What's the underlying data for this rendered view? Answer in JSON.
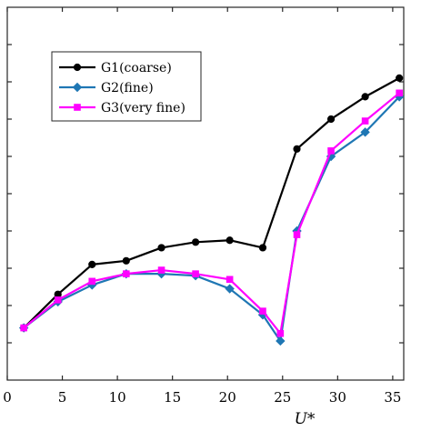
{
  "chart_data": {
    "type": "line",
    "title": "",
    "xlabel": "U*",
    "ylabel": "",
    "xlim": [
      0,
      36
    ],
    "ylim": [
      0,
      10
    ],
    "xticks": [
      0,
      5,
      10,
      15,
      20,
      25,
      30,
      35
    ],
    "xtick_labels": [
      "0",
      "5",
      "10",
      "15",
      "20",
      "25",
      "30",
      "35"
    ],
    "yticks": [
      1,
      2,
      3,
      4,
      5,
      6,
      7,
      8,
      9
    ],
    "grid": false,
    "legend_position": "top-left",
    "series": [
      {
        "name": "G1(coarse)",
        "color": "#000000",
        "marker": "circle",
        "x": [
          1.5,
          4.6,
          7.7,
          10.8,
          14.0,
          17.1,
          20.2,
          23.2,
          26.3,
          29.4,
          32.5,
          35.6
        ],
        "y": [
          1.4,
          2.3,
          3.1,
          3.2,
          3.55,
          3.7,
          3.75,
          3.55,
          6.2,
          7.0,
          7.6,
          8.1
        ]
      },
      {
        "name": "G2(fine)",
        "color": "#1f77b4",
        "marker": "diamond",
        "x": [
          1.5,
          4.6,
          7.7,
          10.8,
          14.0,
          17.1,
          20.2,
          23.2,
          24.8,
          26.3,
          29.4,
          32.5,
          35.6
        ],
        "y": [
          1.4,
          2.1,
          2.55,
          2.85,
          2.85,
          2.8,
          2.45,
          1.75,
          1.05,
          4.0,
          6.0,
          6.65,
          7.6
        ]
      },
      {
        "name": "G3(very fine)",
        "color": "#ff00ff",
        "marker": "square",
        "x": [
          1.5,
          4.6,
          7.7,
          10.8,
          14.0,
          17.1,
          20.2,
          23.2,
          24.8,
          26.3,
          29.4,
          32.5,
          35.6
        ],
        "y": [
          1.4,
          2.15,
          2.65,
          2.85,
          2.95,
          2.85,
          2.7,
          1.85,
          1.25,
          3.9,
          6.15,
          6.95,
          7.7
        ]
      }
    ]
  }
}
